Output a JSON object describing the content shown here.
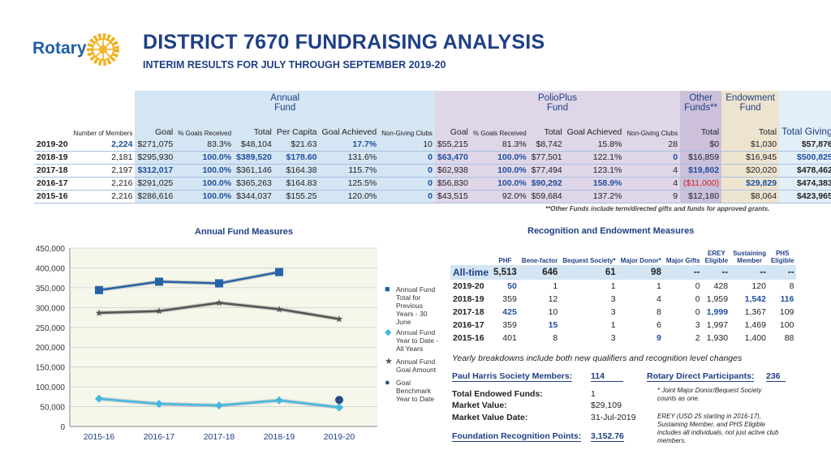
{
  "header": {
    "logo_text": "Rotary",
    "title": "DISTRICT 7670 FUNDRAISING ANALYSIS",
    "subtitle": "INTERIM RESULTS FOR JULY THROUGH SEPTEMBER 2019-20"
  },
  "main_table": {
    "group_headers": {
      "annual": "Annual Fund",
      "polio": "PolioPlus Fund",
      "other": "Other Funds**",
      "endow": "Endowment Fund"
    },
    "columns": {
      "members": "Number of Members",
      "goal": "Goal",
      "pct_goals": "% Goals Received",
      "total": "Total",
      "per_capita": "Per Capita",
      "goal_achieved": "Goal Achieved",
      "non_giving": "Non-Giving Clubs",
      "total_giving": "Total Giving"
    },
    "rows": [
      {
        "year": "2019-20",
        "members": "2,224",
        "a_goal": "$271,075",
        "a_pct": "83.3%",
        "a_total": "$48,104",
        "a_pc": "$21.63",
        "a_ach": "17.7%",
        "a_ng": "10",
        "p_goal": "$55,215",
        "p_pct": "81.3%",
        "p_total": "$8,742",
        "p_ach": "15.8%",
        "p_ng": "28",
        "other": "$0",
        "endow": "$1,030",
        "total": "$57,876"
      },
      {
        "year": "2018-19",
        "members": "2,181",
        "a_goal": "$295,930",
        "a_pct": "100.0%",
        "a_total": "$389,520",
        "a_pc": "$178.60",
        "a_ach": "131.6%",
        "a_ng": "0",
        "p_goal": "$63,470",
        "p_pct": "100.0%",
        "p_total": "$77,501",
        "p_ach": "122.1%",
        "p_ng": "0",
        "other": "$16,859",
        "endow": "$16,945",
        "total": "$500,825"
      },
      {
        "year": "2017-18",
        "members": "2,197",
        "a_goal": "$312,017",
        "a_pct": "100.0%",
        "a_total": "$361,146",
        "a_pc": "$164.38",
        "a_ach": "115.7%",
        "a_ng": "0",
        "p_goal": "$62,938",
        "p_pct": "100.0%",
        "p_total": "$77,494",
        "p_ach": "123.1%",
        "p_ng": "4",
        "other": "$19,802",
        "endow": "$20,020",
        "total": "$478,462"
      },
      {
        "year": "2016-17",
        "members": "2,216",
        "a_goal": "$291,025",
        "a_pct": "100.0%",
        "a_total": "$365,263",
        "a_pc": "$164.83",
        "a_ach": "125.5%",
        "a_ng": "0",
        "p_goal": "$56,830",
        "p_pct": "100.0%",
        "p_total": "$90,292",
        "p_ach": "158.9%",
        "p_ng": "4",
        "other": "($11,000)",
        "endow": "$29,829",
        "total": "$474,383"
      },
      {
        "year": "2015-16",
        "members": "2,216",
        "a_goal": "$286,616",
        "a_pct": "100.0%",
        "a_total": "$344,037",
        "a_pc": "$155.25",
        "a_ach": "120.0%",
        "a_ng": "0",
        "p_goal": "$43,515",
        "p_pct": "92.0%",
        "p_total": "$59,684",
        "p_ach": "137.2%",
        "p_ng": "9",
        "other": "$12,180",
        "endow": "$8,064",
        "total": "$423,965"
      }
    ],
    "note": "**Other Funds include term/directed gifts and funds for approved grants."
  },
  "chart_data": {
    "type": "line",
    "title": "Annual Fund Measures",
    "categories": [
      "2015-16",
      "2016-17",
      "2017-18",
      "2018-19",
      "2019-20"
    ],
    "ylim": [
      0,
      450000
    ],
    "yticks": [
      "0",
      "50,000",
      "100,000",
      "150,000",
      "200,000",
      "250,000",
      "300,000",
      "350,000",
      "400,000",
      "450,000"
    ],
    "series": [
      {
        "name": "Annual Fund Total for Previous Years - 30 June",
        "values": [
          344037,
          365263,
          361146,
          389520,
          null
        ],
        "color": "#2563a8"
      },
      {
        "name": "Annual Fund Year to Date - All Years",
        "values": [
          70000,
          57000,
          53000,
          66000,
          48104
        ],
        "color": "#45b8e0"
      },
      {
        "name": "Annual Fund Goal Amount",
        "values": [
          286616,
          291025,
          312017,
          295930,
          271075
        ],
        "color": "#555555"
      },
      {
        "name": "Goal Benchmark Year to Date",
        "values": [
          null,
          null,
          null,
          null,
          67000
        ],
        "color": "#2a4a8a"
      }
    ]
  },
  "recognition": {
    "title": "Recognition and Endowment Measures",
    "headers": [
      "PHF",
      "Bene-factor",
      "Bequest Society*",
      "Major Donor*",
      "Major Gifts",
      "EREY Eligible",
      "Sustaining Member",
      "PHS Eligible"
    ],
    "alltime": {
      "label": "All-time",
      "values": [
        "5,513",
        "646",
        "61",
        "98",
        "--",
        "--",
        "--",
        "--"
      ]
    },
    "rows": [
      {
        "year": "2019-20",
        "values": [
          "50",
          "1",
          "1",
          "1",
          "0",
          "428",
          "120",
          "8"
        ]
      },
      {
        "year": "2018-19",
        "values": [
          "359",
          "12",
          "3",
          "4",
          "0",
          "1,959",
          "1,542",
          "116"
        ]
      },
      {
        "year": "2017-18",
        "values": [
          "425",
          "10",
          "3",
          "8",
          "0",
          "1,999",
          "1,367",
          "109"
        ]
      },
      {
        "year": "2016-17",
        "values": [
          "359",
          "15",
          "1",
          "6",
          "3",
          "1,997",
          "1,469",
          "100"
        ]
      },
      {
        "year": "2015-16",
        "values": [
          "401",
          "8",
          "3",
          "9",
          "2",
          "1,930",
          "1,400",
          "88"
        ]
      }
    ],
    "note": "Yearly breakdowns include both new qualifiers and recognition level changes",
    "phs_label": "Paul Harris Society Members:",
    "phs_value": "114",
    "rdp_label": "Rotary Direct Participants:",
    "rdp_value": "236",
    "endowed_label": "Total Endowed Funds:",
    "endowed_value": "1",
    "market_label": "Market Value:",
    "market_value": "$29,109",
    "mvd_label": "Market Value Date:",
    "mvd_value": "31-Jul-2019",
    "frp_label": "Foundation Recognition Points:",
    "frp_value": "3,152.76",
    "foot1": "* Joint Major Donor/Bequest Society counts as one.",
    "foot2": "EREY (USD 25 starting in 2016-17), Sustaining Member, and PHS Eligible includes all individuals, not just active club members."
  }
}
